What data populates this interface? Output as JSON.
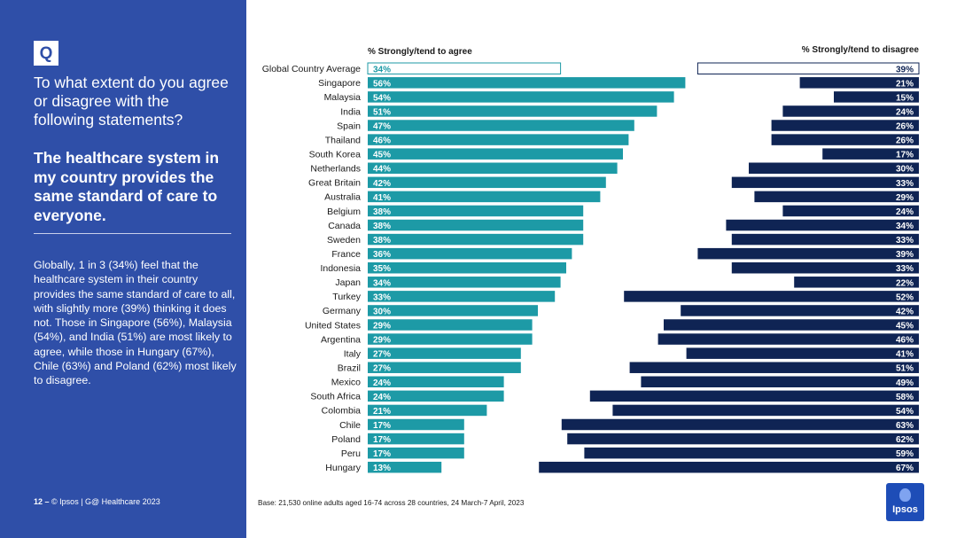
{
  "sidebar": {
    "q_label": "Q",
    "question": "To what extent do you agree or disagree with the following statements?",
    "statement": "The healthcare system in my country provides the same standard of care to everyone.",
    "summary": "Globally, 1 in 3 (34%) feel that the healthcare system in their country provides the same standard of care to all, with slightly more (39%) thinking it does not. Those in Singapore (56%), Malaysia (54%), and India (51%) are most likely to agree, while those in Hungary (67%), Chile (63%) and Poland (62%) most likely to disagree.",
    "page_number": "12 –",
    "footer_text": "© Ipsos | G@ Healthcare 2023"
  },
  "base_note": "Base: 21,530 online adults aged 16-74 across 28 countries, 24 March-7 April, 2023",
  "logo": {
    "label": "Ipsos"
  },
  "colors": {
    "sidebar": "#2f4fa8",
    "agree": "#1d9aa6",
    "disagree": "#0f2454",
    "label_text": "#ffffff"
  },
  "chart_data": {
    "type": "bar",
    "orientation": "horizontal",
    "series": [
      {
        "name": "% Strongly/tend to agree",
        "values": [
          34,
          56,
          54,
          51,
          47,
          46,
          45,
          44,
          42,
          41,
          38,
          38,
          38,
          36,
          35,
          34,
          33,
          30,
          29,
          29,
          27,
          27,
          24,
          24,
          21,
          17,
          17,
          17,
          13
        ]
      },
      {
        "name": "% Strongly/tend to disagree",
        "values": [
          39,
          21,
          15,
          24,
          26,
          26,
          17,
          30,
          33,
          29,
          24,
          34,
          33,
          39,
          33,
          22,
          52,
          42,
          45,
          46,
          41,
          51,
          49,
          58,
          54,
          63,
          62,
          59,
          67
        ]
      }
    ],
    "categories": [
      "Global Country Average",
      "Singapore",
      "Malaysia",
      "India",
      "Spain",
      "Thailand",
      "South Korea",
      "Netherlands",
      "Great Britain",
      "Australia",
      "Belgium",
      "Canada",
      "Sweden",
      "France",
      "Indonesia",
      "Japan",
      "Turkey",
      "Germany",
      "United States",
      "Argentina",
      "Italy",
      "Brazil",
      "Mexico",
      "South Africa",
      "Colombia",
      "Chile",
      "Poland",
      "Peru",
      "Hungary"
    ],
    "highlight_category": "Global Country Average",
    "value_suffix": "%",
    "xlim": [
      0,
      100
    ]
  }
}
